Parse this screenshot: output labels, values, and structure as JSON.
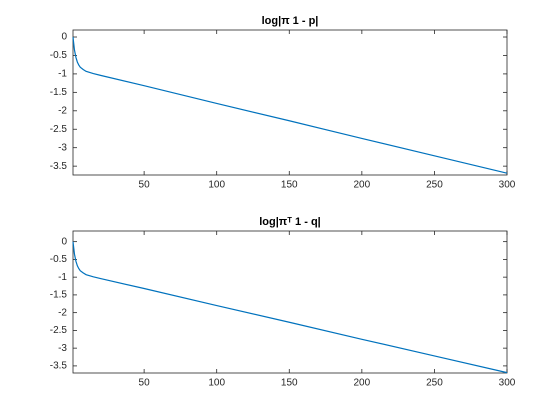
{
  "chart_data": [
    {
      "type": "line",
      "title": "log|π 1 - p|",
      "x": [
        1,
        2,
        3,
        4,
        5,
        6,
        8,
        10,
        15,
        20,
        50,
        100,
        150,
        200,
        250,
        300
      ],
      "series": [
        {
          "color": "#0072bd",
          "values": [
            0,
            -0.35,
            -0.55,
            -0.68,
            -0.76,
            -0.82,
            -0.88,
            -0.93,
            -0.99,
            -1.04,
            -1.32,
            -1.8,
            -2.27,
            -2.75,
            -3.22,
            -3.69
          ]
        }
      ],
      "xlim": [
        1,
        300
      ],
      "xticks": [
        50,
        100,
        150,
        200,
        250,
        300
      ],
      "ylim": [
        -3.74,
        0.19
      ],
      "yticks": [
        0,
        -0.5,
        -1,
        -1.5,
        -2,
        -2.5,
        -3,
        -3.5
      ]
    },
    {
      "type": "line",
      "title": "log|πᵀ 1 - q|",
      "x": [
        1,
        2,
        3,
        4,
        5,
        6,
        8,
        10,
        15,
        20,
        50,
        100,
        150,
        200,
        250,
        300
      ],
      "series": [
        {
          "color": "#0072bd",
          "values": [
            0,
            -0.35,
            -0.55,
            -0.68,
            -0.76,
            -0.82,
            -0.88,
            -0.93,
            -0.99,
            -1.04,
            -1.32,
            -1.8,
            -2.27,
            -2.75,
            -3.22,
            -3.69
          ]
        }
      ],
      "xlim": [
        1,
        300
      ],
      "xticks": [
        50,
        100,
        150,
        200,
        250,
        300
      ],
      "ylim": [
        -3.7,
        0.3
      ],
      "yticks": [
        0,
        -0.5,
        -1,
        -1.5,
        -2,
        -2.5,
        -3,
        -3.5
      ]
    }
  ]
}
